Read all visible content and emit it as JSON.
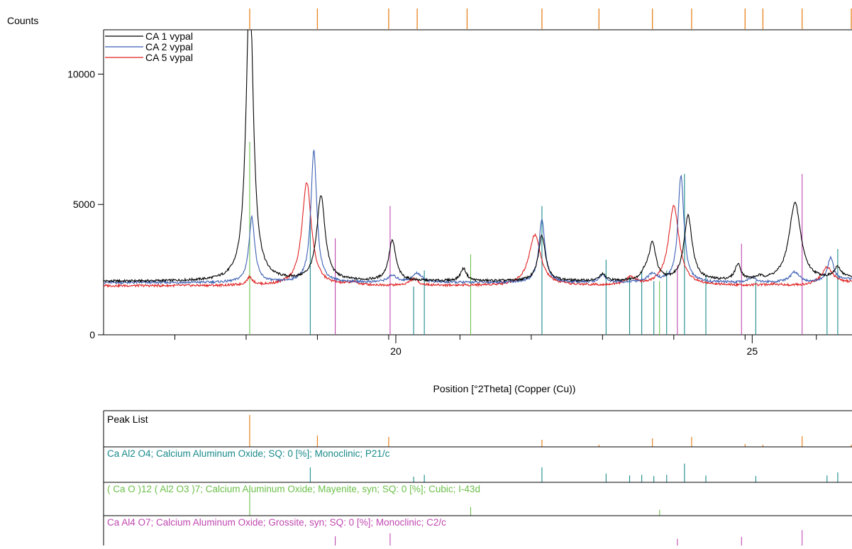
{
  "colors": {
    "axis": "#000000",
    "peak_marker": "#e8821e",
    "series_ca1": "#000000",
    "series_ca2": "#3c5fb4",
    "series_ca5": "#e02020",
    "phase_ca_al2o4": "#1a8a8a",
    "phase_mayenite": "#6cc04a",
    "phase_grossite": "#c048b0"
  },
  "chart_data": {
    "type": "line",
    "ylabel": "Counts",
    "xlabel": "Position [°2Theta] (Copper (Cu))",
    "xlim": [
      15.9,
      26.4
    ],
    "ylim": [
      0,
      11700
    ],
    "x_ticks": [
      20,
      25
    ],
    "x_minor_ticks": [
      16.9,
      17.9,
      18.9,
      19.9,
      20.9,
      21.9,
      22.9,
      23.9,
      24.9,
      25.9
    ],
    "y_ticks": [
      0,
      5000,
      10000
    ],
    "legend": {
      "placement": "top-left",
      "entries": [
        "CA 1 vypal",
        "CA 2 vypal",
        "CA 5 vypal"
      ]
    },
    "baseline": [
      {
        "series": "CA 1 vypal",
        "value": 2050
      },
      {
        "series": "CA 2 vypal",
        "value": 2000
      },
      {
        "series": "CA 5 vypal",
        "value": 1880
      }
    ],
    "series": [
      {
        "name": "CA 1 vypal",
        "color": "#000000",
        "peaks": [
          [
            17.95,
            11600,
            0.06
          ],
          [
            18.95,
            3250,
            0.07
          ],
          [
            19.95,
            1550,
            0.06
          ],
          [
            20.95,
            480,
            0.05
          ],
          [
            22.05,
            1750,
            0.06
          ],
          [
            22.9,
            250,
            0.05
          ],
          [
            23.5,
            250,
            0.06
          ],
          [
            23.6,
            1400,
            0.06
          ],
          [
            24.1,
            2500,
            0.07
          ],
          [
            24.8,
            600,
            0.05
          ],
          [
            25.1,
            100,
            0.06
          ],
          [
            25.6,
            3000,
            0.1
          ],
          [
            26.2,
            400,
            0.06
          ]
        ]
      },
      {
        "name": "CA 2 vypal",
        "color": "#3c5fb4",
        "peaks": [
          [
            17.98,
            2500,
            0.05
          ],
          [
            18.85,
            5050,
            0.05
          ],
          [
            19.95,
            250,
            0.08
          ],
          [
            20.3,
            350,
            0.08
          ],
          [
            22.05,
            2450,
            0.05
          ],
          [
            22.9,
            300,
            0.05
          ],
          [
            23.6,
            300,
            0.08
          ],
          [
            24.0,
            4100,
            0.05
          ],
          [
            25.0,
            200,
            0.06
          ],
          [
            25.6,
            400,
            0.08
          ],
          [
            26.1,
            900,
            0.05
          ]
        ]
      },
      {
        "name": "CA 5 vypal",
        "color": "#e02020",
        "peaks": [
          [
            17.95,
            300,
            0.05
          ],
          [
            18.75,
            3950,
            0.08
          ],
          [
            19.4,
            100,
            0.08
          ],
          [
            20.25,
            250,
            0.07
          ],
          [
            21.95,
            1950,
            0.1
          ],
          [
            23.3,
            300,
            0.08
          ],
          [
            23.9,
            3050,
            0.09
          ],
          [
            25.3,
            50,
            0.1
          ],
          [
            26.05,
            650,
            0.1
          ]
        ]
      }
    ],
    "peak_positions": [
      17.95,
      18.9,
      19.9,
      20.3,
      21.0,
      22.05,
      22.85,
      23.6,
      24.15,
      24.9,
      25.15,
      25.7,
      26.4
    ],
    "reference_patterns": [
      {
        "label": "Ca Al2 O4; Calcium Aluminum Oxide; SQ: 0 [%]; Monoclinic; P21/c",
        "color": "#1a8a8a",
        "lines": [
          [
            18.8,
            48
          ],
          [
            20.25,
            18
          ],
          [
            20.4,
            24
          ],
          [
            22.05,
            48
          ],
          [
            22.95,
            28
          ],
          [
            23.28,
            22
          ],
          [
            23.45,
            24
          ],
          [
            23.62,
            20
          ],
          [
            23.8,
            24
          ],
          [
            24.05,
            60
          ],
          [
            24.35,
            22
          ],
          [
            25.05,
            20
          ],
          [
            26.05,
            22
          ],
          [
            26.2,
            32
          ]
        ]
      },
      {
        "label": "( Ca O )12 ( Al2 O3 )7; Calcium Aluminum Oxide; Mayenite, syn; SQ: 0 [%]; Cubic; I-43d",
        "color": "#6cc04a",
        "lines": [
          [
            17.95,
            100
          ],
          [
            21.05,
            30
          ],
          [
            23.7,
            20
          ]
        ]
      },
      {
        "label": "Ca Al4 O7; Calcium Aluminum Oxide; Grossite, syn; SQ: 0 [%]; Monoclinic; C2/c",
        "color": "#c048b0",
        "lines": [
          [
            19.15,
            36
          ],
          [
            19.92,
            48
          ],
          [
            23.95,
            26
          ],
          [
            24.85,
            34
          ],
          [
            25.7,
            60
          ]
        ]
      }
    ],
    "peak_list_label": "Peak List",
    "grid": false
  }
}
